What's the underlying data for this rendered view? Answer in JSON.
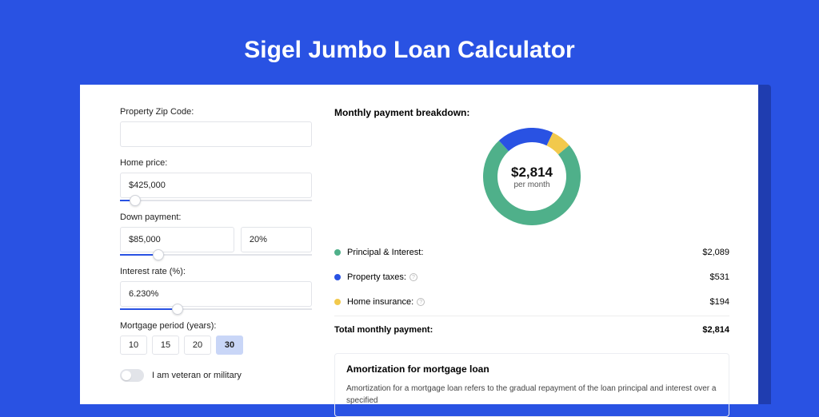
{
  "title": "Sigel Jumbo Loan Calculator",
  "colors": {
    "page_bg": "#2952e3",
    "card_bg": "#ffffff",
    "accent": "#2952e3",
    "border": "#e2e4e9",
    "shadow_bg": "#1f3db0"
  },
  "form": {
    "zip": {
      "label": "Property Zip Code:",
      "value": ""
    },
    "home_price": {
      "label": "Home price:",
      "value": "$425,000",
      "slider_pct": 8
    },
    "down_payment": {
      "label": "Down payment:",
      "value": "$85,000",
      "pct_value": "20%",
      "slider_pct": 20
    },
    "interest_rate": {
      "label": "Interest rate (%):",
      "value": "6.230%",
      "slider_pct": 30
    },
    "mortgage_period": {
      "label": "Mortgage period (years):",
      "options": [
        "10",
        "15",
        "20",
        "30"
      ],
      "selected": "30"
    },
    "veteran": {
      "label": "I am veteran or military",
      "checked": false
    }
  },
  "breakdown": {
    "title": "Monthly payment breakdown:",
    "donut": {
      "amount": "$2,814",
      "sub": "per month",
      "slices": [
        {
          "key": "principal_interest",
          "value": 2089,
          "color": "#4fb08a"
        },
        {
          "key": "property_taxes",
          "value": 531,
          "color": "#2952e3"
        },
        {
          "key": "home_insurance",
          "value": 194,
          "color": "#f2c94c"
        }
      ],
      "stroke_width": 18
    },
    "items": [
      {
        "label": "Principal & Interest:",
        "amount": "$2,089",
        "color": "#4fb08a",
        "info": false
      },
      {
        "label": "Property taxes:",
        "amount": "$531",
        "color": "#2952e3",
        "info": true
      },
      {
        "label": "Home insurance:",
        "amount": "$194",
        "color": "#f2c94c",
        "info": true
      }
    ],
    "total": {
      "label": "Total monthly payment:",
      "amount": "$2,814"
    }
  },
  "amortization": {
    "title": "Amortization for mortgage loan",
    "text": "Amortization for a mortgage loan refers to the gradual repayment of the loan principal and interest over a specified"
  }
}
